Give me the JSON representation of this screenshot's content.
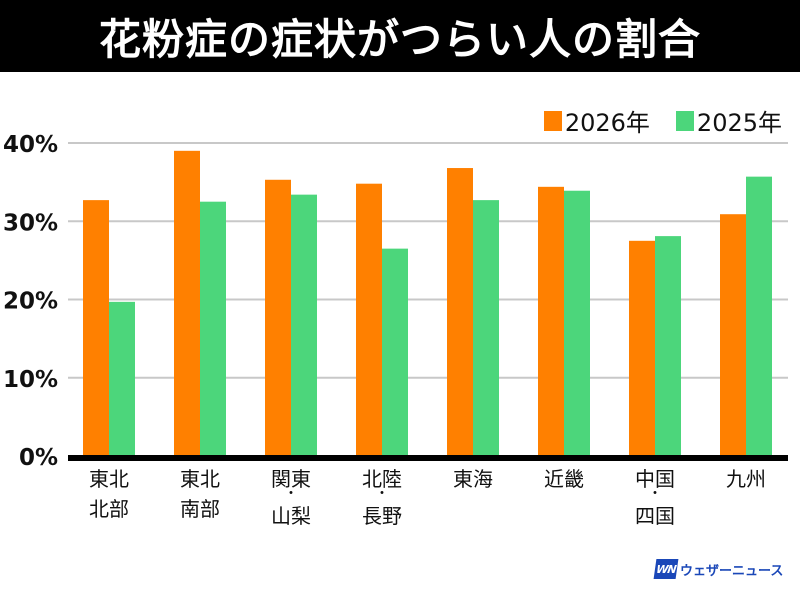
{
  "title": "花粉症の症状がつらい人の割合",
  "logo": {
    "mark": "WN",
    "text": "ウェザーニュース"
  },
  "chart_data": {
    "type": "bar",
    "title": "花粉症の症状がつらい人の割合",
    "xlabel": "",
    "ylabel": "",
    "ylim": [
      0,
      40
    ],
    "yticks": [
      0,
      10,
      20,
      30,
      40
    ],
    "ytick_labels": [
      "0%",
      "10%",
      "20%",
      "30%",
      "40%"
    ],
    "grid": true,
    "legend_position": "top-right",
    "categories": [
      [
        "東北",
        "北部"
      ],
      [
        "東北",
        "南部"
      ],
      [
        "関東",
        "・",
        "山梨"
      ],
      [
        "北陸",
        "・",
        "長野"
      ],
      [
        "東海"
      ],
      [
        "近畿"
      ],
      [
        "中国",
        "・",
        "四国"
      ],
      [
        "九州"
      ]
    ],
    "series": [
      {
        "name": "2026年",
        "color": "#ff8000",
        "values": [
          32.7,
          39.0,
          35.3,
          34.8,
          36.8,
          34.4,
          27.5,
          30.9
        ]
      },
      {
        "name": "2025年",
        "color": "#4cd67b",
        "values": [
          19.7,
          32.5,
          33.4,
          26.5,
          32.7,
          33.9,
          28.1,
          35.7
        ]
      }
    ]
  }
}
